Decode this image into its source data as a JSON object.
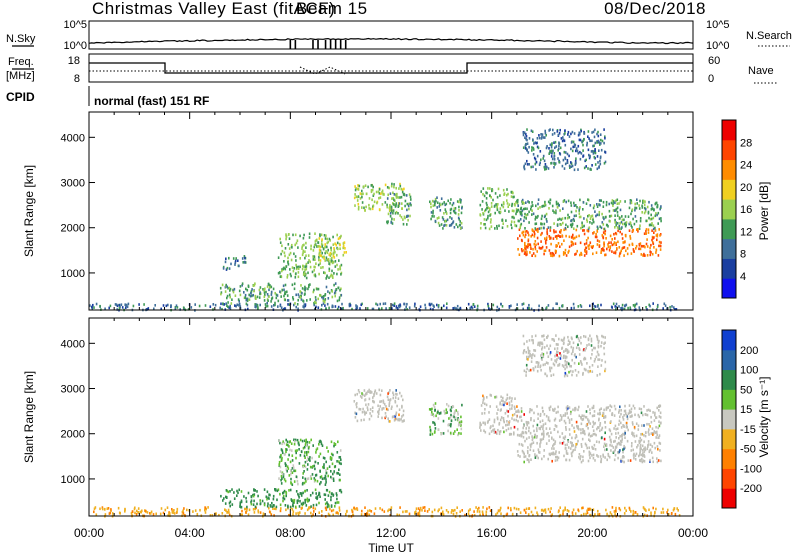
{
  "header": {
    "title": "Christmas Valley East (fitACF)",
    "beam": "Beam 15",
    "date": "08/Dec/2018"
  },
  "top_panels": {
    "nsky_label": "N.Sky",
    "nsearch_label": "N.Search",
    "noise_tick_high": "10^5",
    "noise_tick_low": "10^0",
    "freq_label_line1": "Freq.",
    "freq_label_line2": "[MHz]",
    "freq_ticks": [
      "18",
      "8"
    ],
    "nave_label": "Nave",
    "nave_ticks": [
      "60",
      "0"
    ],
    "cpid_label": "CPID",
    "cpid_value": "normal (fast) 151 RF"
  },
  "colors": {
    "power_scale": [
      "#1010ee",
      "#1b3fa0",
      "#3f6f9a",
      "#3f9a55",
      "#9bd050",
      "#f0d020",
      "#ff8c00",
      "#ff4500",
      "#ee0000"
    ],
    "velocity_scale": [
      "#1040d0",
      "#2a66a8",
      "#2e8a4a",
      "#63c030",
      "#c8c8c0",
      "#f0b020",
      "#ff8000",
      "#ff4500",
      "#ee0000"
    ],
    "ground_scatter": "#c0c0b8"
  },
  "chart_data": [
    {
      "type": "heatmap",
      "name": "power",
      "xlabel": "",
      "ylabel": "Slant Range [km]",
      "colorbar_label": "Power [dB]",
      "colorbar_ticks": [
        "28",
        "24",
        "20",
        "16",
        "12",
        "8",
        "4"
      ],
      "xlim": [
        0,
        24
      ],
      "ylim": [
        180,
        4560
      ],
      "yticks": [
        "1000",
        "2000",
        "3000",
        "4000"
      ],
      "scatter_regions": [
        {
          "t0": 0.0,
          "t1": 23.5,
          "r0": 200,
          "r1": 350,
          "level": 8
        },
        {
          "t0": 5.2,
          "t1": 10.0,
          "r0": 350,
          "r1": 800,
          "level": 12
        },
        {
          "t0": 5.3,
          "t1": 6.2,
          "r0": 1100,
          "r1": 1400,
          "level": 8
        },
        {
          "t0": 7.5,
          "t1": 10.0,
          "r0": 900,
          "r1": 1900,
          "level": 14
        },
        {
          "t0": 9.0,
          "t1": 10.2,
          "r0": 1300,
          "r1": 1800,
          "level": 18
        },
        {
          "t0": 10.5,
          "t1": 12.5,
          "r0": 2400,
          "r1": 3000,
          "level": 16
        },
        {
          "t0": 11.8,
          "t1": 12.8,
          "r0": 2100,
          "r1": 2800,
          "level": 12
        },
        {
          "t0": 13.5,
          "t1": 14.8,
          "r0": 2000,
          "r1": 2700,
          "level": 12
        },
        {
          "t0": 15.5,
          "t1": 17.0,
          "r0": 2000,
          "r1": 2900,
          "level": 14
        },
        {
          "t0": 17.0,
          "t1": 22.7,
          "r0": 1400,
          "r1": 2000,
          "level": 26
        },
        {
          "t0": 17.0,
          "t1": 22.7,
          "r0": 2000,
          "r1": 2650,
          "level": 12
        },
        {
          "t0": 17.2,
          "t1": 20.5,
          "r0": 3300,
          "r1": 4200,
          "level": 8
        }
      ]
    },
    {
      "type": "heatmap",
      "name": "velocity",
      "xlabel": "Time UT",
      "ylabel": "Slant Range [km]",
      "colorbar_label": "Velocity [m s⁻¹]",
      "colorbar_ticks": [
        "200",
        "100",
        "50",
        "15",
        "-15",
        "-50",
        "-100",
        "-200"
      ],
      "xlim": [
        0,
        24
      ],
      "xticks": [
        "00:00",
        "04:00",
        "08:00",
        "12:00",
        "16:00",
        "20:00",
        "00:00"
      ],
      "ylim": [
        180,
        4560
      ],
      "yticks": [
        "1000",
        "2000",
        "3000",
        "4000"
      ],
      "scatter_regions": [
        {
          "t0": 0.0,
          "t1": 23.5,
          "r0": 200,
          "r1": 400,
          "level": -40
        },
        {
          "t0": 5.2,
          "t1": 10.0,
          "r0": 400,
          "r1": 800,
          "level": 40
        },
        {
          "t0": 7.5,
          "t1": 10.0,
          "r0": 900,
          "r1": 1900,
          "level": 30
        },
        {
          "t0": 10.5,
          "t1": 12.5,
          "r0": 2300,
          "r1": 3000,
          "level": 0
        },
        {
          "t0": 13.5,
          "t1": 14.8,
          "r0": 2000,
          "r1": 2700,
          "level": 20
        },
        {
          "t0": 15.5,
          "t1": 17.0,
          "r0": 2000,
          "r1": 2900,
          "level": 0
        },
        {
          "t0": 17.0,
          "t1": 22.7,
          "r0": 1400,
          "r1": 2650,
          "level": 0
        },
        {
          "t0": 17.2,
          "t1": 20.5,
          "r0": 3300,
          "r1": 4200,
          "level": 0
        }
      ]
    }
  ]
}
